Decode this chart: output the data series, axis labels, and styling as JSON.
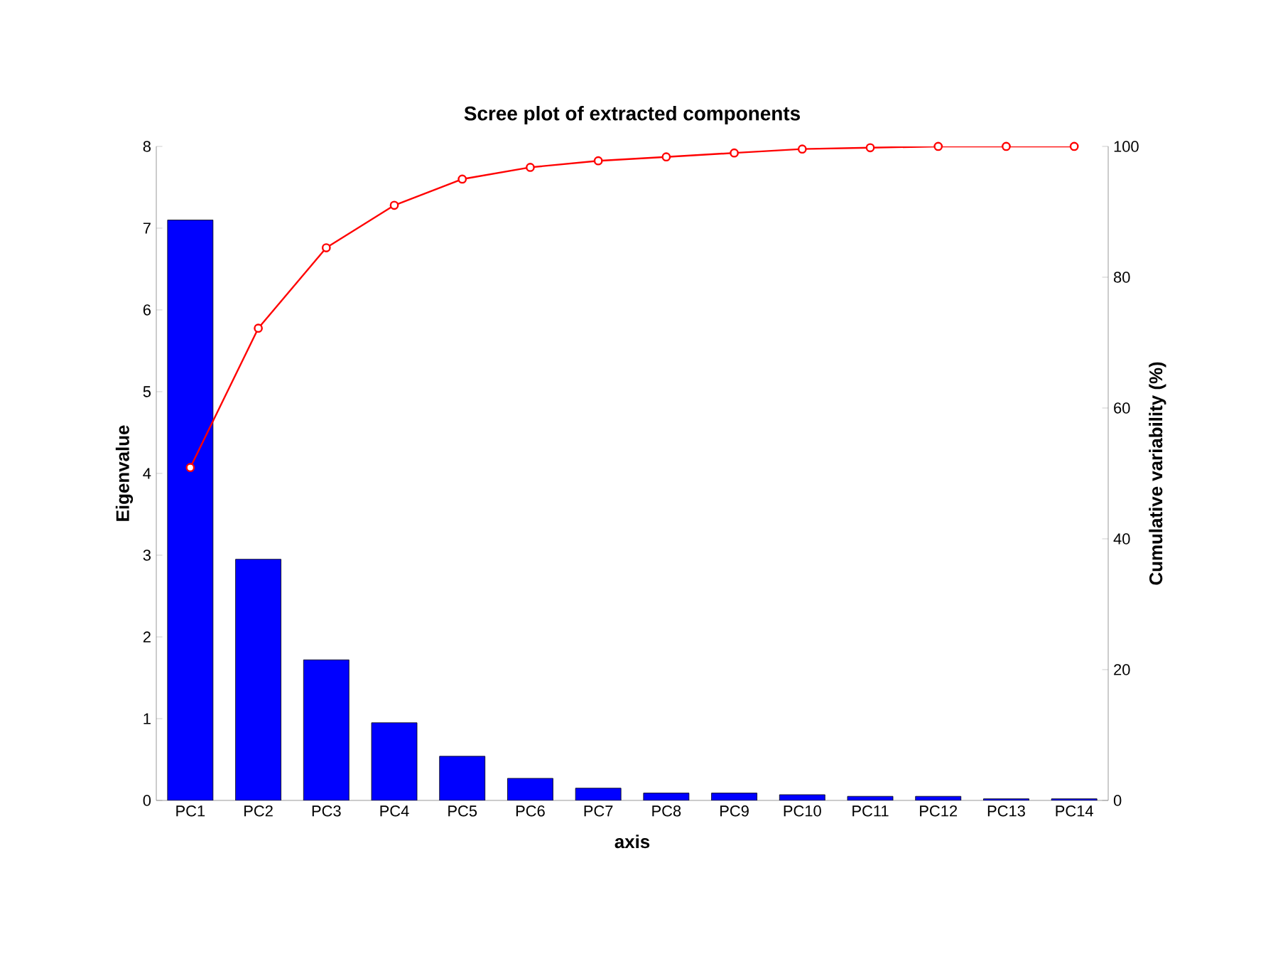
{
  "chart_data": {
    "type": "bar",
    "title": "Scree plot of extracted components",
    "xlabel": "axis",
    "ylabel": "Eigenvalue",
    "y2label": "Cumulative variability (%)",
    "categories": [
      "PC1",
      "PC2",
      "PC3",
      "PC4",
      "PC5",
      "PC6",
      "PC7",
      "PC8",
      "PC9",
      "PC10",
      "PC11",
      "PC12",
      "PC13",
      "PC14"
    ],
    "series": [
      {
        "color": "#0000ff",
        "values": [
          7.1,
          2.95,
          1.72,
          0.95,
          0.54,
          0.27,
          0.15,
          0.09,
          0.09,
          0.07,
          0.05,
          0.05,
          0.02,
          0.02
        ]
      },
      {
        "type": "line",
        "axis": "y2",
        "color": "#ff0000",
        "marker": "circle",
        "values": [
          50.9,
          72.2,
          84.5,
          91.0,
          95.0,
          96.8,
          97.8,
          98.4,
          99.0,
          99.6,
          99.8,
          100,
          100,
          100
        ]
      }
    ],
    "ylim": [
      0,
      8
    ],
    "yticks": [
      0,
      1,
      2,
      3,
      4,
      5,
      6,
      7,
      8
    ],
    "y2lim": [
      0,
      100
    ],
    "y2ticks": [
      0,
      20,
      40,
      60,
      80,
      100
    ],
    "grid": false
  }
}
